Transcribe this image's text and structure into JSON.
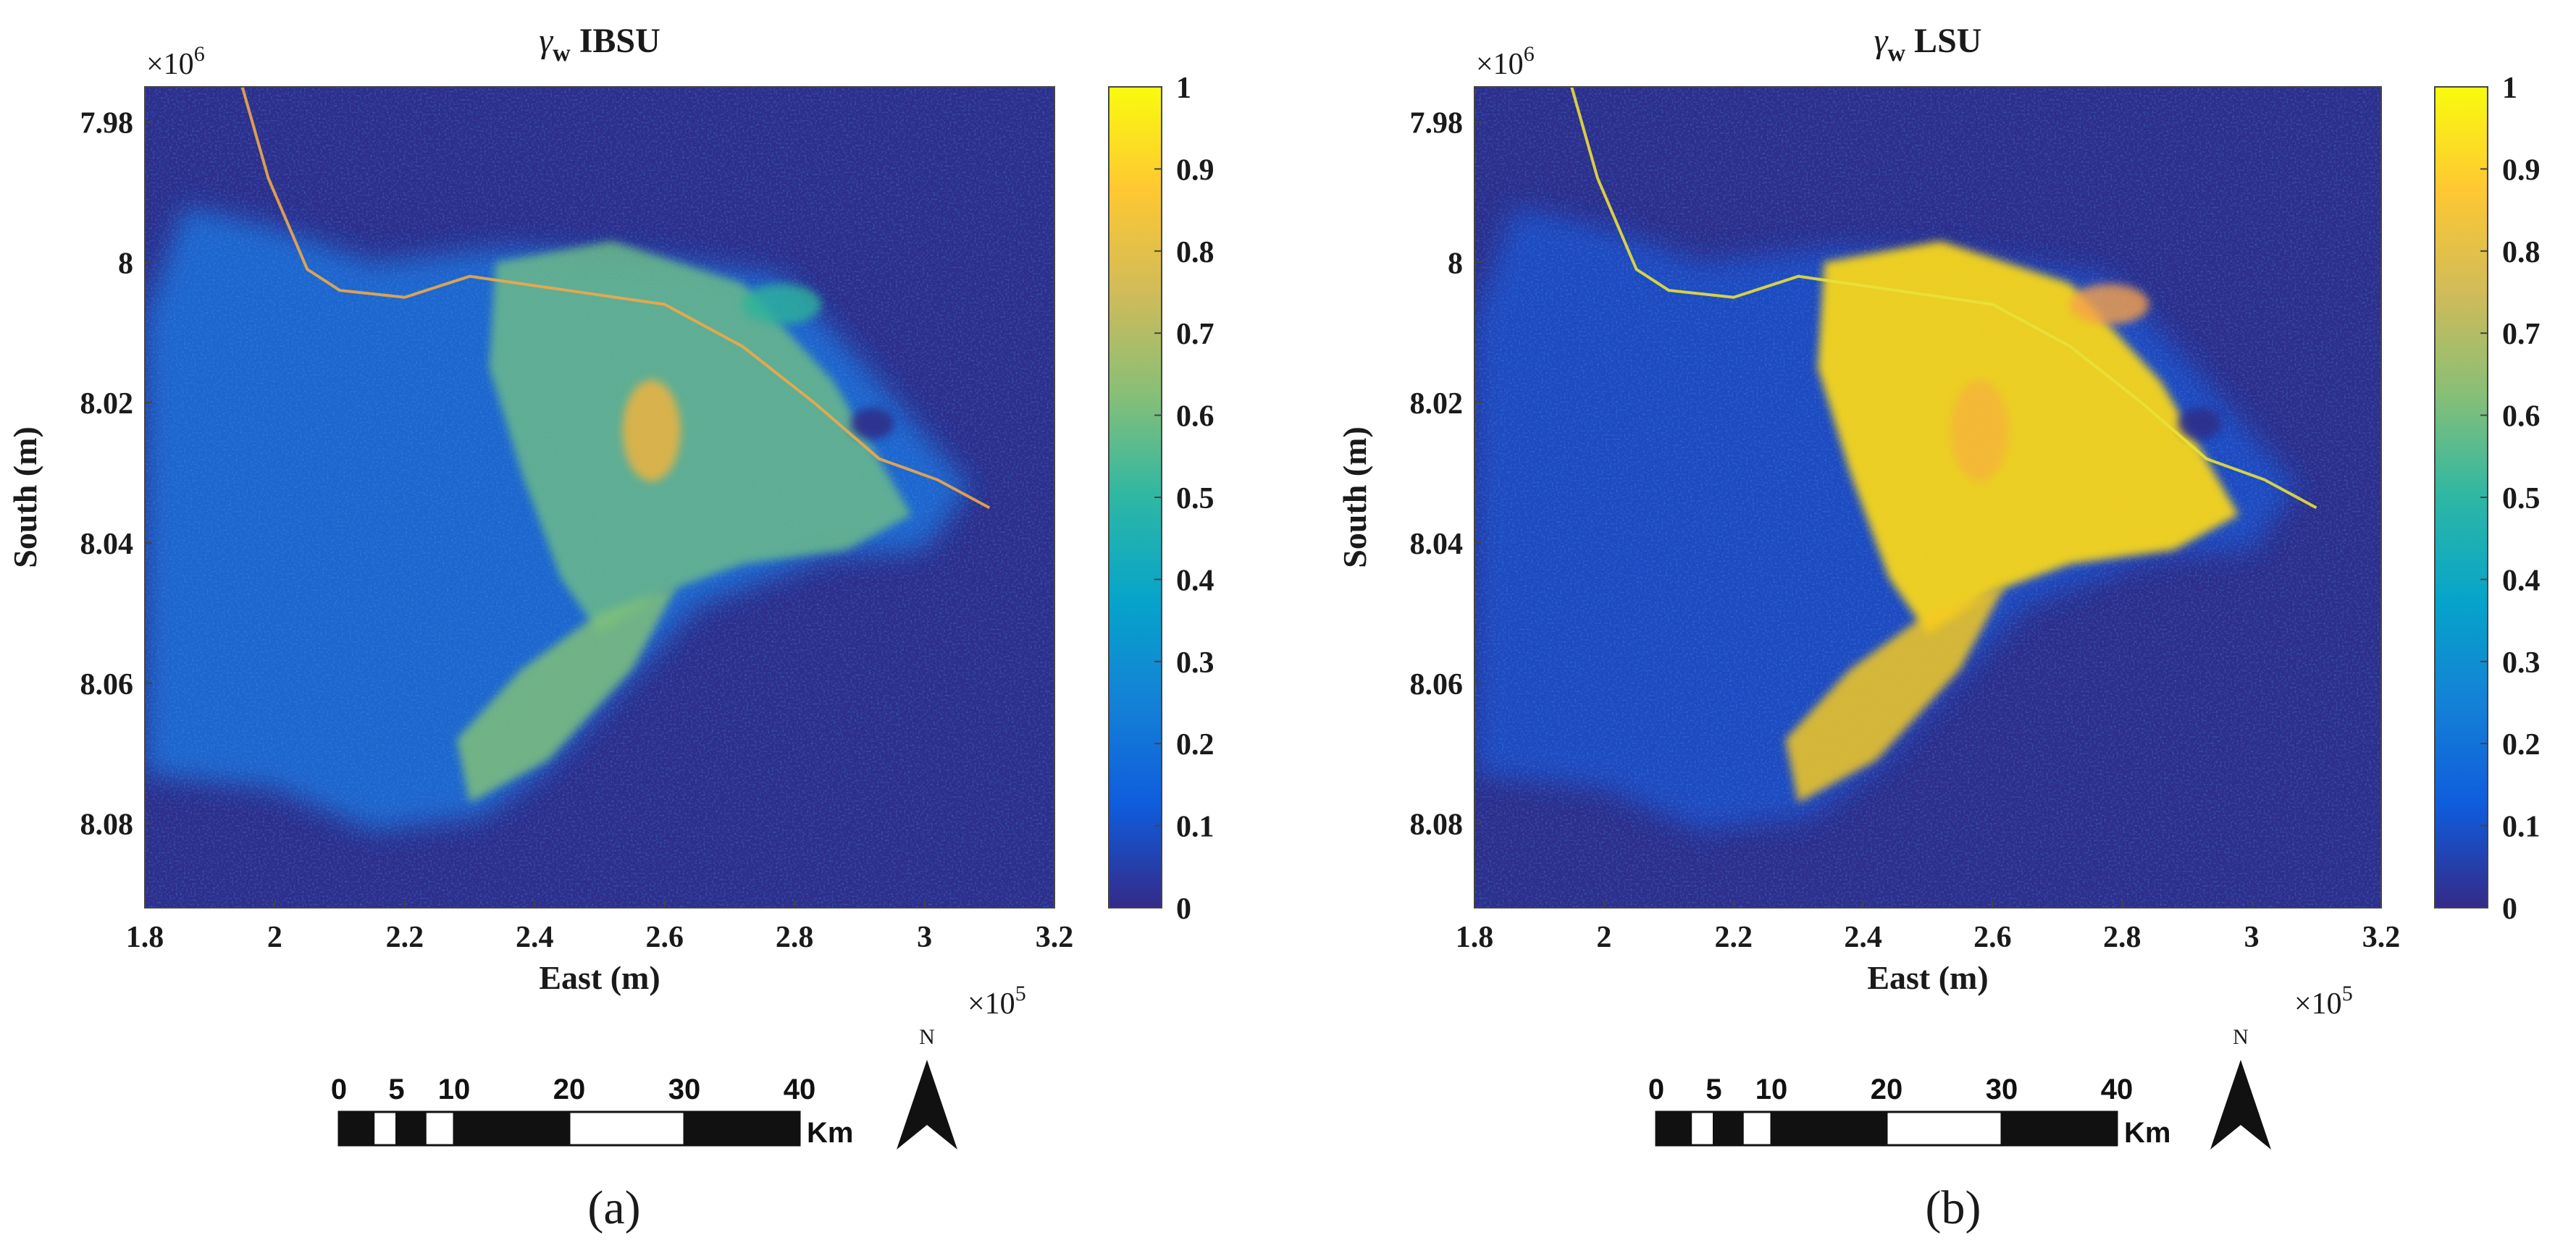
{
  "colors": {
    "background": "#2e2d8a",
    "colormap": [
      "#352a87",
      "#0f5cdd",
      "#1481d6",
      "#06a4ca",
      "#2eb7a4",
      "#87bf77",
      "#d1bb59",
      "#fec832",
      "#f9fb0e"
    ]
  },
  "chart_data": [
    {
      "type": "heatmap",
      "panel_label": "(a)",
      "title_symbol": "γ",
      "title_subscript": "w",
      "title_text": "IBSU",
      "xlabel": "East (m)",
      "ylabel": "South (m)",
      "x_exponent_label": "×10",
      "x_exponent": "5",
      "y_exponent_label": "×10",
      "y_exponent": "6",
      "xlim": [
        1.8,
        3.2
      ],
      "ylim": [
        7.975,
        8.092
      ],
      "xticks": [
        1.8,
        2.0,
        2.2,
        2.4,
        2.6,
        2.8,
        3.0,
        3.2
      ],
      "xtick_labels": [
        "1.8",
        "2",
        "2.2",
        "2.4",
        "2.6",
        "2.8",
        "3",
        "3.2"
      ],
      "yticks": [
        7.98,
        8.0,
        8.02,
        8.04,
        8.06,
        8.08
      ],
      "ytick_labels": [
        "7.98",
        "8",
        "8.02",
        "8.04",
        "8.06",
        "8.08"
      ],
      "colorbar": {
        "range": [
          0,
          1
        ],
        "ticks": [
          0,
          0.1,
          0.2,
          0.3,
          0.4,
          0.5,
          0.6,
          0.7,
          0.8,
          0.9,
          1
        ],
        "tick_labels": [
          "0",
          "0.1",
          "0.2",
          "0.3",
          "0.4",
          "0.5",
          "0.6",
          "0.7",
          "0.8",
          "0.9",
          "1"
        ]
      },
      "scale_bar": {
        "labels": [
          "0",
          "5",
          "10",
          "20",
          "30",
          "40"
        ],
        "values": [
          0,
          5,
          10,
          20,
          30,
          40
        ],
        "unit": "Km"
      },
      "north_label": "N",
      "intensity": 0.55
    },
    {
      "type": "heatmap",
      "panel_label": "(b)",
      "title_symbol": "γ",
      "title_subscript": "w",
      "title_text": "LSU",
      "xlabel": "East (m)",
      "ylabel": "South (m)",
      "x_exponent_label": "×10",
      "x_exponent": "5",
      "y_exponent_label": "×10",
      "y_exponent": "6",
      "xlim": [
        1.8,
        3.2
      ],
      "ylim": [
        7.975,
        8.092
      ],
      "xticks": [
        1.8,
        2.0,
        2.2,
        2.4,
        2.6,
        2.8,
        3.0,
        3.2
      ],
      "xtick_labels": [
        "1.8",
        "2",
        "2.2",
        "2.4",
        "2.6",
        "2.8",
        "3",
        "3.2"
      ],
      "yticks": [
        7.98,
        8.0,
        8.02,
        8.04,
        8.06,
        8.08
      ],
      "ytick_labels": [
        "7.98",
        "8",
        "8.02",
        "8.04",
        "8.06",
        "8.08"
      ],
      "colorbar": {
        "range": [
          0,
          1
        ],
        "ticks": [
          0,
          0.1,
          0.2,
          0.3,
          0.4,
          0.5,
          0.6,
          0.7,
          0.8,
          0.9,
          1
        ],
        "tick_labels": [
          "0",
          "0.1",
          "0.2",
          "0.3",
          "0.4",
          "0.5",
          "0.6",
          "0.7",
          "0.8",
          "0.9",
          "1"
        ]
      },
      "scale_bar": {
        "labels": [
          "0",
          "5",
          "10",
          "20",
          "30",
          "40"
        ],
        "values": [
          0,
          5,
          10,
          20,
          30,
          40
        ],
        "unit": "Km"
      },
      "north_label": "N",
      "intensity": 0.95
    }
  ]
}
